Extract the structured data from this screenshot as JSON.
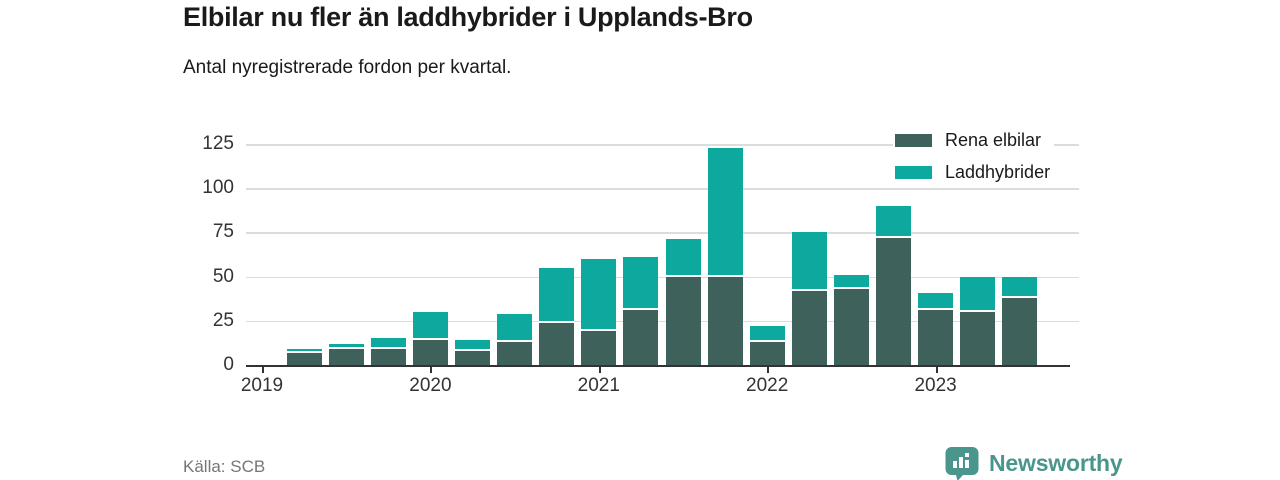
{
  "header": {
    "title": "Elbilar nu fler än laddhybrider i Upplands-Bro",
    "subtitle": "Antal nyregistrerade fordon per kvartal."
  },
  "chart_data": {
    "type": "bar",
    "stacked": true,
    "categories": [
      "2019 Q2",
      "2019 Q3",
      "2019 Q4",
      "2020 Q1",
      "2020 Q2",
      "2020 Q3",
      "2020 Q4",
      "2021 Q1",
      "2021 Q2",
      "2021 Q3",
      "2021 Q4",
      "2022 Q1",
      "2022 Q2",
      "2022 Q3",
      "2022 Q4",
      "2023 Q1",
      "2023 Q2",
      "2023 Q3"
    ],
    "series": [
      {
        "name": "Rena elbilar",
        "color": "#3e615b",
        "values": [
          7,
          9,
          9,
          14,
          8,
          13,
          24,
          19,
          31,
          50,
          50,
          13,
          42,
          43,
          72,
          31,
          30,
          38
        ]
      },
      {
        "name": "Laddhybrider",
        "color": "#0da89e",
        "values": [
          2,
          3,
          6,
          16,
          6,
          16,
          31,
          41,
          30,
          21,
          73,
          9,
          33,
          8,
          18,
          10,
          20,
          12
        ]
      }
    ],
    "ylim": [
      0,
      125
    ],
    "yticks": [
      0,
      25,
      50,
      75,
      100,
      125
    ],
    "xticks": [
      "2019",
      "2020",
      "2021",
      "2022",
      "2023"
    ],
    "year_tick_slots": [
      0,
      4,
      8,
      12,
      16
    ],
    "first_bar_slot": 1,
    "total_quarter_slots": 20,
    "grid": true,
    "legend_position": "top-right",
    "gridline_color": "#dcdcdc",
    "axis_color": "#333333"
  },
  "footer": {
    "source": "Källa: SCB",
    "brand": "Newsworthy",
    "brand_color": "#4a968c"
  }
}
